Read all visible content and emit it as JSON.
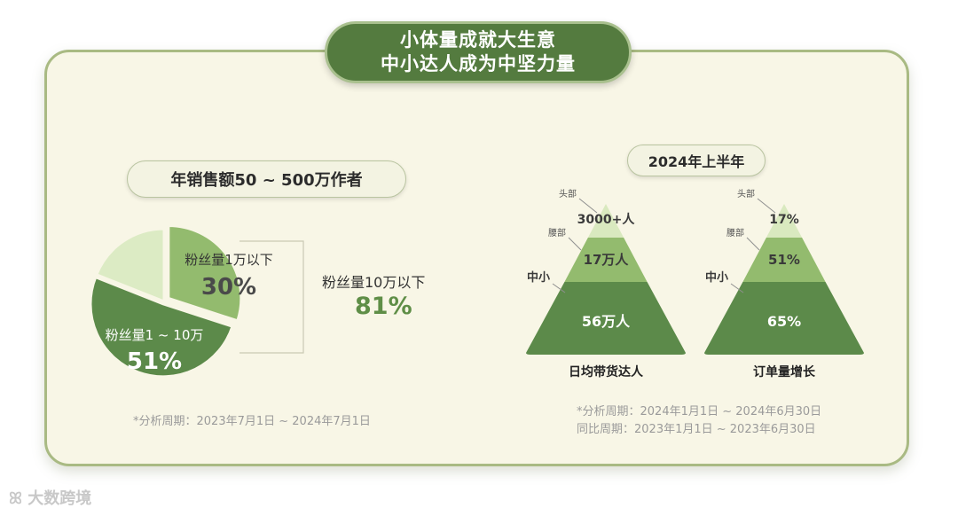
{
  "title": {
    "line1": "小体量成就大生意",
    "line2": "中小达人成为中坚力量"
  },
  "left": {
    "pill": "年销售额50 ~ 500万作者",
    "note": "*分析周期：2023年7月1日 ~ 2024年7月1日",
    "bracket_label": "粉丝量10万以下",
    "bracket_value": "81%"
  },
  "right": {
    "pill": "2024年上半年",
    "note_line1": "*分析周期：2024年1月1日 ~ 2024年6月30日",
    "note_line2": "同比周期：2023年1月1日 ~ 2023年6月30日"
  },
  "logo_text": "大数跨境",
  "colors": {
    "dark_green": "#5c8a4a",
    "mid_green": "#93bb6e",
    "light_green": "#d9e9bf",
    "value_green": "#5f8e47"
  },
  "chart_data": [
    {
      "type": "pie",
      "slices": [
        {
          "label": "粉丝量1万以下",
          "value": 30,
          "display": "30%",
          "color": "#93bb6e"
        },
        {
          "label": "粉丝量1 ~ 10万",
          "value": 51,
          "display": "51%",
          "color": "#5c8a4a"
        },
        {
          "label": "",
          "value": 19,
          "display": "",
          "color": "#dcebc4"
        }
      ]
    },
    {
      "type": "pyramid",
      "caption": "日均带货达人",
      "tiers": [
        {
          "side_label": "头部",
          "value_label": "3000+人"
        },
        {
          "side_label": "腰部",
          "value_label": "17万人"
        },
        {
          "side_label": "中小",
          "value_label": "56万人"
        }
      ]
    },
    {
      "type": "pyramid",
      "caption": "订单量增长",
      "tiers": [
        {
          "side_label": "头部",
          "value_label": "17%"
        },
        {
          "side_label": "腰部",
          "value_label": "51%"
        },
        {
          "side_label": "中小",
          "value_label": "65%"
        }
      ]
    }
  ]
}
